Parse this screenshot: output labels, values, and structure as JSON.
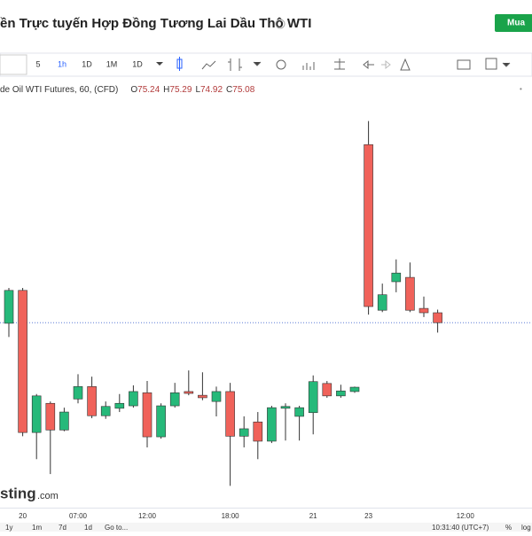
{
  "header": {
    "title": "ền Trực tuyến Hợp Đồng Tương Lai Dầu Thô WTI",
    "buy_button": "Mua"
  },
  "toolbar": {
    "intervals": [
      "5",
      "1h",
      "1D",
      "1M",
      "1D"
    ],
    "selected": 1
  },
  "chart_data": {
    "type": "candlestick",
    "symbol": "de Oil WTI Futures, 60, (CFD)",
    "legend_prefixes": [
      "O",
      "H",
      "L",
      "C"
    ],
    "categories": [
      null,
      "20",
      null,
      null,
      null,
      "07:00",
      null,
      null,
      null,
      null,
      "12:00",
      null,
      null,
      null,
      null,
      null,
      "18:00",
      null,
      null,
      null,
      null,
      null,
      "21",
      null,
      null,
      null,
      "23",
      null,
      null,
      null,
      null,
      null,
      null,
      "12:00",
      null,
      null,
      null
    ],
    "open": [
      75.07,
      75.6,
      73.31,
      73.78,
      73.35,
      73.85,
      74.05,
      73.58,
      73.7,
      73.74,
      73.95,
      73.24,
      73.74,
      73.97,
      73.91,
      73.81,
      73.97,
      73.25,
      73.48,
      73.17,
      73.7,
      73.57,
      73.63,
      74.1,
      73.9,
      73.97,
      77.95,
      75.28,
      75.74,
      75.81,
      75.31,
      75.24,
      null,
      null,
      null,
      null,
      null
    ],
    "high": [
      75.64,
      75.64,
      73.93,
      73.81,
      73.71,
      74.25,
      74.21,
      73.81,
      73.93,
      74.07,
      74.14,
      73.78,
      74.11,
      74.31,
      74.28,
      74.05,
      74.11,
      73.57,
      73.64,
      73.74,
      73.78,
      73.74,
      74.23,
      74.14,
      74.08,
      74.05,
      78.33,
      75.71,
      76.1,
      76.05,
      75.5,
      75.29,
      null,
      null,
      null,
      null,
      null
    ],
    "low": [
      74.85,
      73.25,
      72.88,
      72.64,
      73.33,
      73.78,
      73.54,
      73.53,
      73.64,
      73.71,
      73.07,
      73.21,
      73.71,
      73.91,
      73.83,
      73.57,
      72.45,
      73.07,
      72.88,
      73.14,
      73.18,
      73.18,
      73.28,
      73.87,
      73.87,
      73.95,
      75.21,
      75.25,
      75.57,
      75.25,
      75.17,
      74.92,
      null,
      null,
      null,
      null,
      null
    ],
    "close": [
      75.6,
      73.31,
      73.9,
      73.35,
      73.64,
      74.05,
      73.58,
      73.73,
      73.78,
      73.97,
      73.24,
      73.74,
      73.95,
      73.94,
      73.87,
      73.97,
      73.25,
      73.37,
      73.17,
      73.71,
      73.73,
      73.71,
      74.13,
      73.9,
      73.98,
      74.04,
      75.34,
      75.53,
      75.88,
      75.28,
      75.24,
      75.08,
      null,
      null,
      null,
      null,
      null
    ],
    "up_color": "#26b97a",
    "down_color": "#f0625a",
    "ylim": [
      72.07,
      78.71
    ]
  },
  "watermark": [
    "sting",
    ".com"
  ],
  "footer": {
    "ranges": [
      "1y",
      "1m",
      "7d",
      "1d"
    ],
    "goto": "Go to...",
    "time": "10:31:40 (UTC+7)",
    "percent": "%",
    "log": "log"
  }
}
